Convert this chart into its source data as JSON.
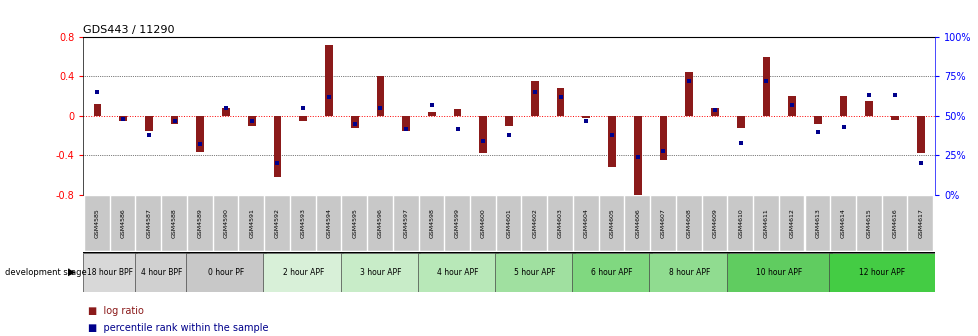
{
  "title": "GDS443 / 11290",
  "samples": [
    "GSM4585",
    "GSM4586",
    "GSM4587",
    "GSM4588",
    "GSM4589",
    "GSM4590",
    "GSM4591",
    "GSM4592",
    "GSM4593",
    "GSM4594",
    "GSM4595",
    "GSM4596",
    "GSM4597",
    "GSM4598",
    "GSM4599",
    "GSM4600",
    "GSM4601",
    "GSM4602",
    "GSM4603",
    "GSM4604",
    "GSM4605",
    "GSM4606",
    "GSM4607",
    "GSM4608",
    "GSM4609",
    "GSM4610",
    "GSM4611",
    "GSM4612",
    "GSM4613",
    "GSM4614",
    "GSM4615",
    "GSM4616",
    "GSM4617"
  ],
  "log_ratio": [
    0.12,
    -0.05,
    -0.15,
    -0.08,
    -0.37,
    0.08,
    -0.1,
    -0.62,
    -0.05,
    0.72,
    -0.12,
    0.4,
    -0.15,
    0.04,
    0.07,
    -0.38,
    -0.1,
    0.35,
    0.28,
    -0.02,
    -0.52,
    -0.8,
    -0.45,
    0.45,
    0.08,
    -0.12,
    0.6,
    0.2,
    -0.08,
    0.2,
    0.15,
    -0.04,
    -0.38
  ],
  "percentile_rank": [
    65,
    48,
    38,
    47,
    32,
    55,
    47,
    20,
    55,
    62,
    45,
    55,
    42,
    57,
    42,
    34,
    38,
    65,
    62,
    47,
    38,
    24,
    28,
    72,
    54,
    33,
    72,
    57,
    40,
    43,
    63,
    63,
    20
  ],
  "stage_groups": [
    {
      "label": "18 hour BPF",
      "start": 0,
      "end": 2,
      "color": "#d8d8d8"
    },
    {
      "label": "4 hour BPF",
      "start": 2,
      "end": 4,
      "color": "#d0d0d0"
    },
    {
      "label": "0 hour PF",
      "start": 4,
      "end": 7,
      "color": "#c8c8c8"
    },
    {
      "label": "2 hour APF",
      "start": 7,
      "end": 10,
      "color": "#d8f0d8"
    },
    {
      "label": "3 hour APF",
      "start": 10,
      "end": 13,
      "color": "#c8ecc8"
    },
    {
      "label": "4 hour APF",
      "start": 13,
      "end": 16,
      "color": "#b8e8b8"
    },
    {
      "label": "5 hour APF",
      "start": 16,
      "end": 19,
      "color": "#a0e0a0"
    },
    {
      "label": "6 hour APF",
      "start": 19,
      "end": 22,
      "color": "#80d880"
    },
    {
      "label": "8 hour APF",
      "start": 22,
      "end": 25,
      "color": "#90dc90"
    },
    {
      "label": "10 hour APF",
      "start": 25,
      "end": 29,
      "color": "#60cc60"
    },
    {
      "label": "12 hour APF",
      "start": 29,
      "end": 33,
      "color": "#44cc44"
    }
  ],
  "ylim": [
    -0.8,
    0.8
  ],
  "bar_color": "#8b1a1a",
  "dot_color": "#00008b",
  "background_color": "#ffffff",
  "tick_bg_color": "#c8c8c8"
}
